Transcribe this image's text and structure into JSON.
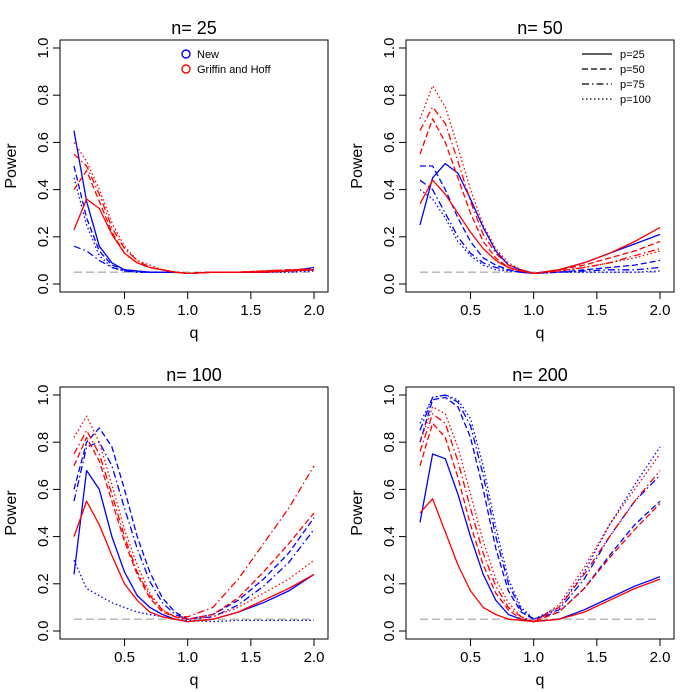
{
  "chart_data": [
    {
      "type": "line",
      "title": "n= 25",
      "xlabel": "q",
      "ylabel": "Power",
      "xlim": [
        0.1,
        2.0
      ],
      "ylim": [
        0.0,
        1.0
      ],
      "xticks": [
        "0.5",
        "1.0",
        "1.5",
        "2.0"
      ],
      "yticks": [
        "0.0",
        "0.2",
        "0.4",
        "0.6",
        "0.8",
        "1.0"
      ],
      "reference_line": 0.05,
      "legend": {
        "position": "top-right",
        "entries": [
          {
            "label": "New",
            "color": "#0000ff"
          },
          {
            "label": "Griffin and Hoff",
            "color": "#ff0000"
          }
        ]
      },
      "x": [
        0.1,
        0.2,
        0.3,
        0.4,
        0.5,
        0.6,
        0.7,
        0.8,
        0.9,
        1.0,
        1.2,
        1.4,
        1.6,
        1.8,
        2.0
      ],
      "series": [
        {
          "name": "New p=25",
          "color": "#0000ff",
          "dash": "solid",
          "values": [
            0.65,
            0.35,
            0.16,
            0.09,
            0.06,
            0.055,
            0.05,
            0.05,
            0.05,
            0.045,
            0.05,
            0.05,
            0.05,
            0.055,
            0.07
          ]
        },
        {
          "name": "New p=50",
          "color": "#0000ff",
          "dash": "dashed",
          "values": [
            0.5,
            0.28,
            0.14,
            0.08,
            0.06,
            0.055,
            0.05,
            0.05,
            0.05,
            0.045,
            0.05,
            0.05,
            0.05,
            0.055,
            0.06
          ]
        },
        {
          "name": "New p=75",
          "color": "#0000ff",
          "dash": "dashdot",
          "values": [
            0.16,
            0.14,
            0.1,
            0.07,
            0.055,
            0.05,
            0.05,
            0.05,
            0.05,
            0.045,
            0.05,
            0.05,
            0.05,
            0.055,
            0.06
          ]
        },
        {
          "name": "New p=100",
          "color": "#0000ff",
          "dash": "dotted",
          "values": [
            0.45,
            0.25,
            0.12,
            0.07,
            0.055,
            0.05,
            0.05,
            0.05,
            0.05,
            0.045,
            0.05,
            0.05,
            0.05,
            0.05,
            0.055
          ]
        },
        {
          "name": "Griffin and Hoff p=25",
          "color": "#ff0000",
          "dash": "solid",
          "values": [
            0.23,
            0.36,
            0.32,
            0.21,
            0.13,
            0.09,
            0.07,
            0.06,
            0.05,
            0.045,
            0.05,
            0.05,
            0.05,
            0.055,
            0.06
          ]
        },
        {
          "name": "Griffin and Hoff p=50",
          "color": "#ff0000",
          "dash": "dashed",
          "values": [
            0.4,
            0.48,
            0.35,
            0.22,
            0.13,
            0.09,
            0.07,
            0.06,
            0.05,
            0.045,
            0.05,
            0.05,
            0.055,
            0.06,
            0.06
          ]
        },
        {
          "name": "Griffin and Hoff p=75",
          "color": "#ff0000",
          "dash": "dashdot",
          "values": [
            0.55,
            0.5,
            0.38,
            0.24,
            0.15,
            0.1,
            0.07,
            0.06,
            0.05,
            0.045,
            0.05,
            0.05,
            0.055,
            0.06,
            0.065
          ]
        },
        {
          "name": "Griffin and Hoff p=100",
          "color": "#ff0000",
          "dash": "dotted",
          "values": [
            0.6,
            0.52,
            0.4,
            0.26,
            0.16,
            0.1,
            0.08,
            0.06,
            0.05,
            0.045,
            0.05,
            0.05,
            0.055,
            0.06,
            0.06
          ]
        }
      ]
    },
    {
      "type": "line",
      "title": "n= 50",
      "xlabel": "q",
      "ylabel": "Power",
      "xlim": [
        0.1,
        2.0
      ],
      "ylim": [
        0.0,
        1.0
      ],
      "xticks": [
        "0.5",
        "1.0",
        "1.5",
        "2.0"
      ],
      "yticks": [
        "0.0",
        "0.2",
        "0.4",
        "0.6",
        "0.8",
        "1.0"
      ],
      "reference_line": 0.05,
      "legend": {
        "position": "top-right",
        "entries": [
          {
            "label": "p=25",
            "dash": "solid"
          },
          {
            "label": "p=50",
            "dash": "dashed"
          },
          {
            "label": "p=75",
            "dash": "dashdot"
          },
          {
            "label": "p=100",
            "dash": "dotted"
          }
        ]
      },
      "x": [
        0.1,
        0.2,
        0.3,
        0.4,
        0.5,
        0.6,
        0.7,
        0.8,
        0.9,
        1.0,
        1.2,
        1.4,
        1.6,
        1.8,
        2.0
      ],
      "series": [
        {
          "name": "New p=25",
          "color": "#0000ff",
          "dash": "solid",
          "values": [
            0.25,
            0.45,
            0.51,
            0.47,
            0.36,
            0.24,
            0.14,
            0.08,
            0.06,
            0.045,
            0.06,
            0.09,
            0.13,
            0.17,
            0.21
          ]
        },
        {
          "name": "New p=50",
          "color": "#0000ff",
          "dash": "dashed",
          "values": [
            0.5,
            0.5,
            0.4,
            0.28,
            0.18,
            0.11,
            0.08,
            0.06,
            0.05,
            0.045,
            0.05,
            0.06,
            0.07,
            0.08,
            0.1
          ]
        },
        {
          "name": "New p=75",
          "color": "#0000ff",
          "dash": "dashdot",
          "values": [
            0.44,
            0.4,
            0.3,
            0.2,
            0.13,
            0.09,
            0.07,
            0.06,
            0.05,
            0.045,
            0.05,
            0.055,
            0.06,
            0.06,
            0.07
          ]
        },
        {
          "name": "New p=100",
          "color": "#0000ff",
          "dash": "dotted",
          "values": [
            0.4,
            0.36,
            0.28,
            0.18,
            0.12,
            0.08,
            0.06,
            0.055,
            0.05,
            0.045,
            0.05,
            0.05,
            0.05,
            0.05,
            0.055
          ]
        },
        {
          "name": "Griffin and Hoff p=25",
          "color": "#ff0000",
          "dash": "solid",
          "values": [
            0.34,
            0.44,
            0.38,
            0.3,
            0.22,
            0.15,
            0.1,
            0.07,
            0.055,
            0.045,
            0.06,
            0.09,
            0.13,
            0.18,
            0.24
          ]
        },
        {
          "name": "Griffin and Hoff p=50",
          "color": "#ff0000",
          "dash": "dashed",
          "values": [
            0.55,
            0.7,
            0.6,
            0.45,
            0.3,
            0.18,
            0.11,
            0.07,
            0.055,
            0.045,
            0.06,
            0.08,
            0.11,
            0.14,
            0.18
          ]
        },
        {
          "name": "Griffin and Hoff p=75",
          "color": "#ff0000",
          "dash": "dashdot",
          "values": [
            0.65,
            0.75,
            0.68,
            0.52,
            0.35,
            0.21,
            0.13,
            0.08,
            0.06,
            0.045,
            0.055,
            0.07,
            0.09,
            0.12,
            0.15
          ]
        },
        {
          "name": "Griffin and Hoff p=100",
          "color": "#ff0000",
          "dash": "dotted",
          "values": [
            0.7,
            0.84,
            0.75,
            0.58,
            0.4,
            0.25,
            0.15,
            0.09,
            0.06,
            0.045,
            0.055,
            0.07,
            0.09,
            0.11,
            0.14
          ]
        }
      ]
    },
    {
      "type": "line",
      "title": "n= 100",
      "xlabel": "q",
      "ylabel": "Power",
      "xlim": [
        0.1,
        2.0
      ],
      "ylim": [
        0.0,
        1.0
      ],
      "xticks": [
        "0.5",
        "1.0",
        "1.5",
        "2.0"
      ],
      "yticks": [
        "0.0",
        "0.2",
        "0.4",
        "0.6",
        "0.8",
        "1.0"
      ],
      "reference_line": 0.05,
      "x": [
        0.1,
        0.2,
        0.3,
        0.4,
        0.5,
        0.6,
        0.7,
        0.8,
        0.9,
        1.0,
        1.2,
        1.4,
        1.6,
        1.8,
        2.0
      ],
      "series": [
        {
          "name": "New p=25",
          "color": "#0000ff",
          "dash": "solid",
          "values": [
            0.24,
            0.68,
            0.6,
            0.4,
            0.25,
            0.15,
            0.1,
            0.07,
            0.05,
            0.04,
            0.05,
            0.08,
            0.12,
            0.17,
            0.24
          ]
        },
        {
          "name": "New p=50",
          "color": "#0000ff",
          "dash": "dashed",
          "values": [
            0.6,
            0.8,
            0.86,
            0.78,
            0.6,
            0.4,
            0.25,
            0.14,
            0.08,
            0.05,
            0.07,
            0.13,
            0.22,
            0.33,
            0.48
          ]
        },
        {
          "name": "New p=75",
          "color": "#0000ff",
          "dash": "dashdot",
          "values": [
            0.55,
            0.78,
            0.8,
            0.7,
            0.52,
            0.35,
            0.21,
            0.12,
            0.07,
            0.05,
            0.06,
            0.11,
            0.19,
            0.29,
            0.43
          ]
        },
        {
          "name": "New p=100",
          "color": "#0000ff",
          "dash": "dotted",
          "values": [
            0.3,
            0.18,
            0.15,
            0.12,
            0.1,
            0.08,
            0.07,
            0.06,
            0.05,
            0.045,
            0.04,
            0.045,
            0.045,
            0.045,
            0.045
          ]
        },
        {
          "name": "Griffin and Hoff p=25",
          "color": "#ff0000",
          "dash": "solid",
          "values": [
            0.4,
            0.55,
            0.45,
            0.32,
            0.2,
            0.13,
            0.08,
            0.06,
            0.05,
            0.04,
            0.05,
            0.08,
            0.13,
            0.18,
            0.24
          ]
        },
        {
          "name": "Griffin and Hoff p=50",
          "color": "#ff0000",
          "dash": "dashed",
          "values": [
            0.7,
            0.82,
            0.72,
            0.55,
            0.38,
            0.24,
            0.14,
            0.08,
            0.06,
            0.05,
            0.07,
            0.14,
            0.25,
            0.37,
            0.5
          ]
        },
        {
          "name": "Griffin and Hoff p=75",
          "color": "#ff0000",
          "dash": "dashdot",
          "values": [
            0.75,
            0.85,
            0.75,
            0.58,
            0.4,
            0.25,
            0.15,
            0.09,
            0.06,
            0.06,
            0.1,
            0.22,
            0.37,
            0.52,
            0.7
          ]
        },
        {
          "name": "Griffin and Hoff p=100",
          "color": "#ff0000",
          "dash": "dotted",
          "values": [
            0.82,
            0.91,
            0.8,
            0.62,
            0.43,
            0.28,
            0.16,
            0.09,
            0.06,
            0.05,
            0.06,
            0.1,
            0.16,
            0.22,
            0.3
          ]
        }
      ]
    },
    {
      "type": "line",
      "title": "n= 200",
      "xlabel": "q",
      "ylabel": "Power",
      "xlim": [
        0.1,
        2.0
      ],
      "ylim": [
        0.0,
        1.0
      ],
      "xticks": [
        "0.5",
        "1.0",
        "1.5",
        "2.0"
      ],
      "yticks": [
        "0.0",
        "0.2",
        "0.4",
        "0.6",
        "0.8",
        "1.0"
      ],
      "reference_line": 0.05,
      "x": [
        0.1,
        0.2,
        0.3,
        0.4,
        0.5,
        0.6,
        0.7,
        0.8,
        0.9,
        1.0,
        1.2,
        1.4,
        1.6,
        1.8,
        2.0
      ],
      "series": [
        {
          "name": "New p=25",
          "color": "#0000ff",
          "dash": "solid",
          "values": [
            0.46,
            0.75,
            0.73,
            0.58,
            0.4,
            0.24,
            0.13,
            0.07,
            0.05,
            0.04,
            0.05,
            0.09,
            0.14,
            0.19,
            0.23
          ]
        },
        {
          "name": "New p=50",
          "color": "#0000ff",
          "dash": "dashed",
          "values": [
            0.8,
            0.98,
            0.99,
            0.95,
            0.82,
            0.6,
            0.35,
            0.17,
            0.08,
            0.05,
            0.08,
            0.18,
            0.32,
            0.45,
            0.55
          ]
        },
        {
          "name": "New p=75",
          "color": "#0000ff",
          "dash": "dashdot",
          "values": [
            0.85,
            0.99,
            1.0,
            0.97,
            0.87,
            0.66,
            0.4,
            0.2,
            0.09,
            0.05,
            0.09,
            0.22,
            0.4,
            0.55,
            0.66
          ]
        },
        {
          "name": "New p=100",
          "color": "#0000ff",
          "dash": "dotted",
          "values": [
            0.88,
            0.99,
            1.0,
            0.98,
            0.9,
            0.7,
            0.44,
            0.22,
            0.1,
            0.05,
            0.1,
            0.25,
            0.45,
            0.62,
            0.78
          ]
        },
        {
          "name": "Griffin and Hoff p=25",
          "color": "#ff0000",
          "dash": "solid",
          "values": [
            0.5,
            0.56,
            0.42,
            0.28,
            0.17,
            0.1,
            0.07,
            0.05,
            0.045,
            0.04,
            0.05,
            0.08,
            0.13,
            0.18,
            0.22
          ]
        },
        {
          "name": "Griffin and Hoff p=50",
          "color": "#ff0000",
          "dash": "dashed",
          "values": [
            0.7,
            0.88,
            0.82,
            0.65,
            0.45,
            0.28,
            0.16,
            0.09,
            0.05,
            0.04,
            0.08,
            0.18,
            0.31,
            0.43,
            0.54
          ]
        },
        {
          "name": "Griffin and Hoff p=75",
          "color": "#ff0000",
          "dash": "dashdot",
          "values": [
            0.76,
            0.92,
            0.88,
            0.72,
            0.52,
            0.33,
            0.19,
            0.1,
            0.06,
            0.04,
            0.1,
            0.24,
            0.4,
            0.55,
            0.68
          ]
        },
        {
          "name": "Griffin and Hoff p=100",
          "color": "#ff0000",
          "dash": "dotted",
          "values": [
            0.8,
            0.95,
            0.92,
            0.78,
            0.58,
            0.38,
            0.22,
            0.12,
            0.06,
            0.04,
            0.11,
            0.27,
            0.45,
            0.6,
            0.75
          ]
        }
      ]
    }
  ]
}
